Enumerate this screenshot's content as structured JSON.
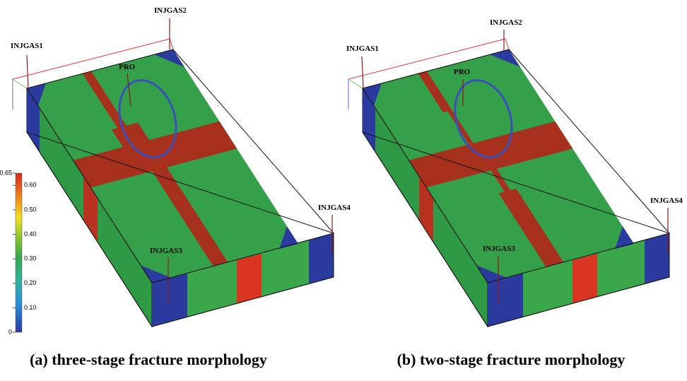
{
  "panels": [
    {
      "wells": [
        "INJGAS1",
        "INJGAS2",
        "PRO",
        "INJGAS3",
        "INJGAS4"
      ],
      "caption": "(a) three-stage fracture morphology"
    },
    {
      "wells": [
        "INJGAS1",
        "INJGAS2",
        "PRO",
        "INJGAS3",
        "INJGAS4"
      ],
      "caption": "(b) two-stage fracture morphology"
    }
  ],
  "colorbar": {
    "ticks": [
      0.65,
      {
        "value": 0.6,
        "label": "0.60"
      },
      {
        "value": 0.5,
        "label": "0.50"
      },
      {
        "value": 0.4,
        "label": "0.40"
      },
      {
        "value": 0.3,
        "label": "0.30"
      },
      {
        "value": 0.2,
        "label": "0.20"
      },
      {
        "value": 0.1,
        "label": "0.10"
      },
      0
    ]
  }
}
